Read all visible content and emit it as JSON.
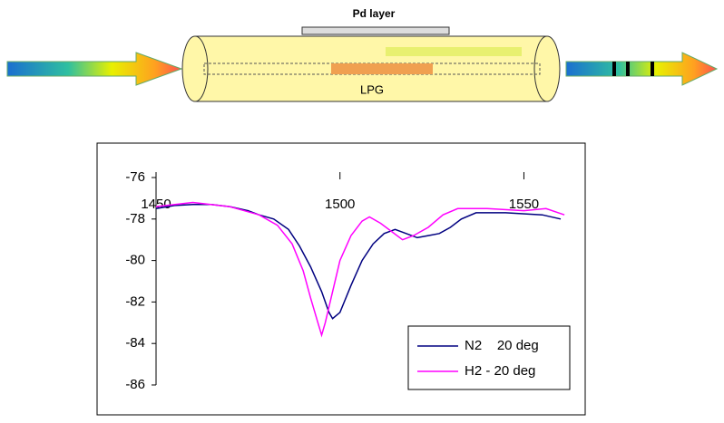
{
  "diagram": {
    "layer_label": "Pd layer",
    "grating_label": "LPG"
  },
  "chart_data": {
    "type": "line",
    "xlim": [
      1450,
      1560
    ],
    "xticks": [
      1450,
      1500,
      1550
    ],
    "ylim": [
      -86,
      -76
    ],
    "yticks": [
      -76,
      -78,
      -80,
      -82,
      -84,
      -86
    ],
    "legend": "lower right",
    "series": [
      {
        "name": "N2    20 deg",
        "color": "#000080",
        "x": [
          1450,
          1455,
          1460,
          1465,
          1470,
          1475,
          1478,
          1482,
          1486,
          1489,
          1492,
          1495,
          1497,
          1498,
          1500,
          1503,
          1506,
          1509,
          1512,
          1515,
          1518,
          1521,
          1524,
          1527,
          1530,
          1533,
          1537,
          1545,
          1555,
          1560
        ],
        "values": [
          -77.5,
          -77.35,
          -77.3,
          -77.3,
          -77.4,
          -77.6,
          -77.8,
          -78.0,
          -78.5,
          -79.3,
          -80.3,
          -81.5,
          -82.5,
          -82.8,
          -82.5,
          -81.2,
          -80.0,
          -79.2,
          -78.7,
          -78.5,
          -78.7,
          -78.9,
          -78.8,
          -78.7,
          -78.4,
          -78.0,
          -77.7,
          -77.7,
          -77.8,
          -78.0
        ]
      },
      {
        "name": "H2 - 20 deg",
        "color": "#ff00ff",
        "x": [
          1450,
          1460,
          1470,
          1478,
          1483,
          1487,
          1490,
          1492,
          1494,
          1495,
          1496,
          1498,
          1500,
          1503,
          1506,
          1508,
          1511,
          1514,
          1517,
          1520,
          1524,
          1528,
          1532,
          1540,
          1550,
          1556,
          1561
        ],
        "values": [
          -77.4,
          -77.2,
          -77.4,
          -77.8,
          -78.3,
          -79.2,
          -80.5,
          -81.8,
          -83.0,
          -83.6,
          -83.0,
          -81.5,
          -80.0,
          -78.8,
          -78.1,
          -77.9,
          -78.2,
          -78.6,
          -79.0,
          -78.8,
          -78.4,
          -77.8,
          -77.5,
          -77.5,
          -77.6,
          -77.5,
          -77.8
        ]
      }
    ]
  }
}
